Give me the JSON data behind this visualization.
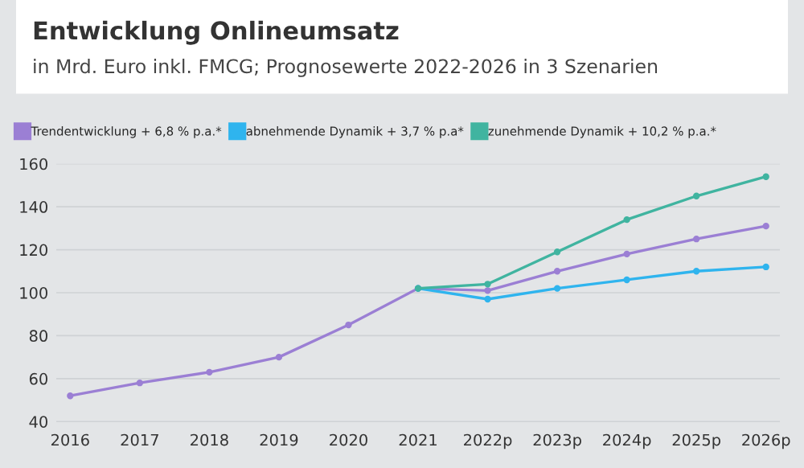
{
  "chart_data": {
    "type": "line",
    "title": "Entwicklung Onlineumsatz",
    "subtitle": "in Mrd. Euro inkl. FMCG; Prognosewerte 2022-2026 in 3 Szenarien",
    "categories": [
      "2016",
      "2017",
      "2018",
      "2019",
      "2020",
      "2021",
      "2022p",
      "2023p",
      "2024p",
      "2025p",
      "2026p"
    ],
    "series": [
      {
        "name": "Trendentwicklung + 6,8 % p.a.*",
        "color": "#9b7fd4",
        "values": [
          52,
          58,
          63,
          70,
          85,
          102,
          101,
          110,
          118,
          125,
          131
        ]
      },
      {
        "name": "abnehmende Dynamik + 3,7 % p.a*",
        "color": "#2fb4ee",
        "values": [
          null,
          null,
          null,
          null,
          null,
          102,
          97,
          102,
          106,
          110,
          112
        ]
      },
      {
        "name": "zunehmende Dynamik + 10,2 % p.a.*",
        "color": "#40b4a0",
        "values": [
          null,
          null,
          null,
          null,
          null,
          102,
          104,
          119,
          134,
          145,
          154
        ]
      }
    ],
    "ylim": [
      38,
      160
    ],
    "yticks": [
      40,
      60,
      80,
      100,
      120,
      140,
      160
    ],
    "grid": "y",
    "legend": "top left",
    "marker": "circle",
    "line_style": "solid"
  }
}
